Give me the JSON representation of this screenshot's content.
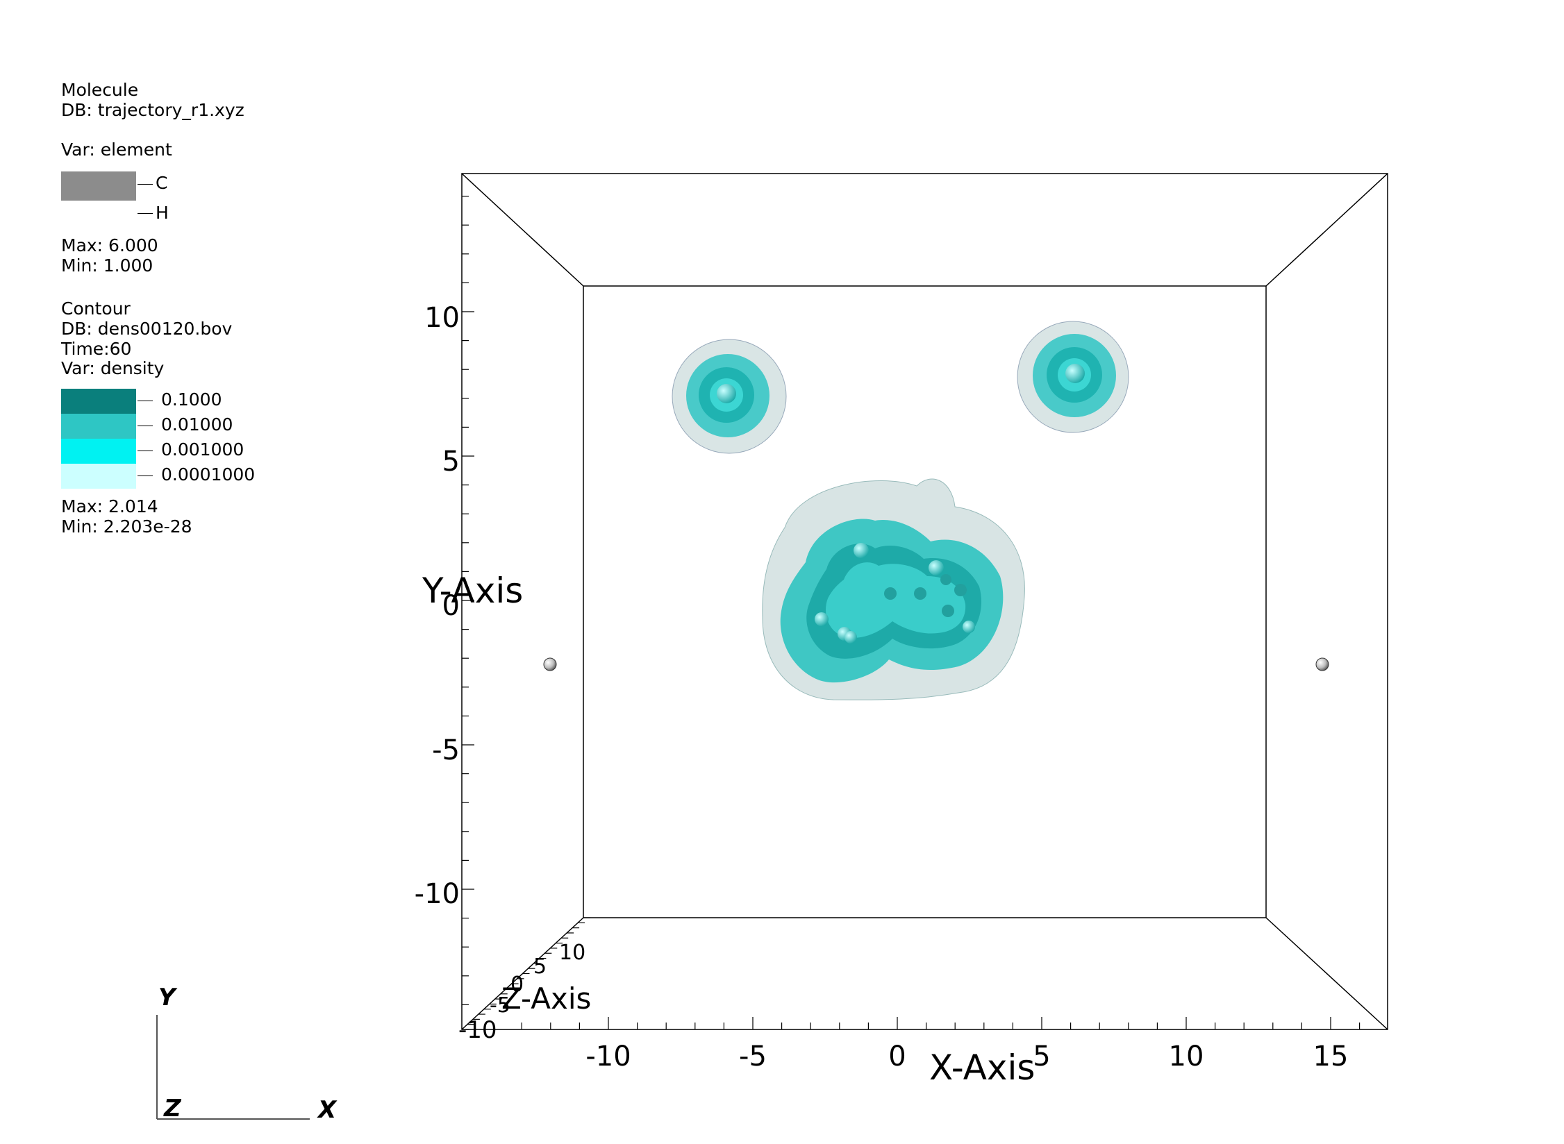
{
  "molecule_legend": {
    "title": "Molecule",
    "db": "DB: trajectory_r1.xyz",
    "var": "Var: element",
    "entries": [
      {
        "label": "C",
        "color": "#8c8c8c"
      },
      {
        "label": "H",
        "color": "#ffffff"
      }
    ],
    "max": "Max:  6.000",
    "min": "Min:  1.000"
  },
  "contour_legend": {
    "title": "Contour",
    "db": "DB: dens00120.bov",
    "time": "Time:60",
    "var": "Var: density",
    "levels": [
      {
        "label": "0.1000",
        "color": "#0a7f7c"
      },
      {
        "label": "0.01000",
        "color": "#2ec6c4"
      },
      {
        "label": "0.001000",
        "color": "#00f2f2"
      },
      {
        "label": "0.0001000",
        "color": "#ccffff"
      }
    ],
    "max": "Max:  2.014",
    "min": "Min:  2.203e-28"
  },
  "axes": {
    "x_title": "X-Axis",
    "y_title": "Y-Axis",
    "z_title": "Z-Axis",
    "x_ticks": [
      "-10",
      "-5",
      "0",
      "5",
      "10",
      "15"
    ],
    "y_ticks": [
      "10",
      "5",
      "0",
      "-5",
      "-10"
    ],
    "z_ticks": [
      "10",
      "5",
      "0",
      "-5",
      "-10"
    ]
  },
  "triad": {
    "x": "X",
    "y": "Y",
    "z": "Z"
  },
  "colors": {
    "contour_dark": "#0a7f7c",
    "contour_mid": "#2ec6c4",
    "contour_light": "#00f2f2",
    "contour_faint": "#ccffff",
    "atom_gray": "#8c8c8c"
  }
}
